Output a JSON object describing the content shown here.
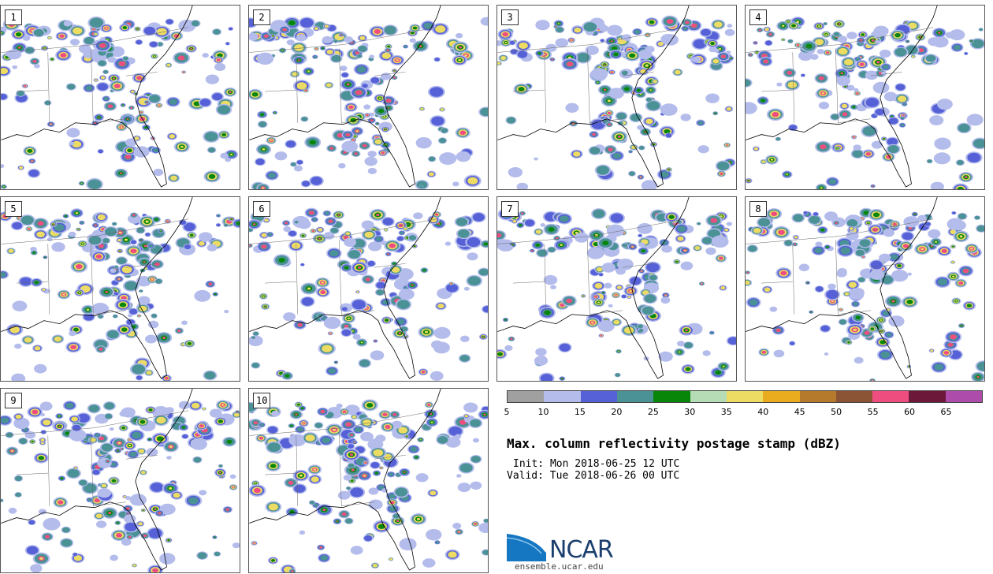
{
  "panels": [
    {
      "label": "1"
    },
    {
      "label": "2"
    },
    {
      "label": "3"
    },
    {
      "label": "4"
    },
    {
      "label": "5"
    },
    {
      "label": "6"
    },
    {
      "label": "7"
    },
    {
      "label": "8"
    },
    {
      "label": "9"
    },
    {
      "label": "10"
    }
  ],
  "colorbar": {
    "colors": [
      "#a0a0a0",
      "#b4bcec",
      "#5661d8",
      "#4b9296",
      "#07860a",
      "#b5dcb4",
      "#eddc64",
      "#eaac1f",
      "#b57a2c",
      "#8b5535",
      "#ed4e7f",
      "#6c1839",
      "#ad4cab"
    ],
    "ticks": [
      "5",
      "10",
      "15",
      "20",
      "25",
      "30",
      "35",
      "40",
      "45",
      "50",
      "55",
      "60",
      "65"
    ]
  },
  "title": "Max. column reflectivity postage stamp (dBZ)",
  "init": "Init: Mon 2018-06-25 12 UTC",
  "valid": "Valid: Tue 2018-06-26 00 UTC",
  "logo": {
    "text": "NCAR",
    "url_text": "ensemble.ucar.edu"
  }
}
